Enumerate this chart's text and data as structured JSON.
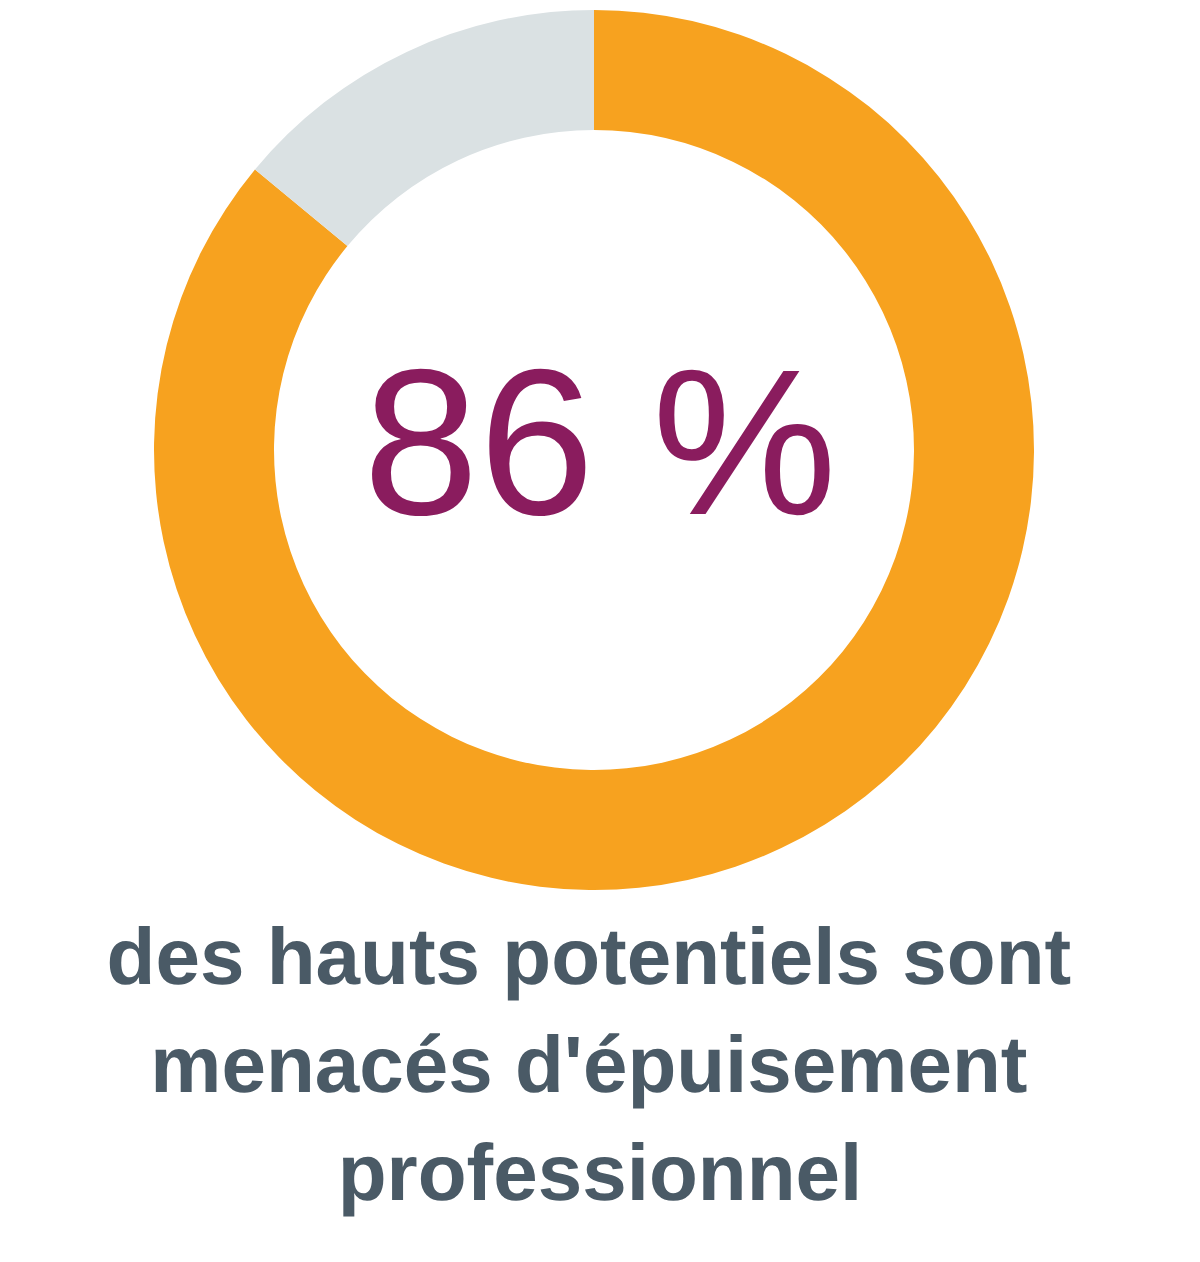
{
  "chart_data": {
    "type": "donut",
    "title": "des hauts potentiels sont menacés d'épuisement professionnel",
    "annotations": [
      "86 %"
    ],
    "categories": [
      null,
      null
    ],
    "values": [
      86,
      14
    ],
    "colors": [
      "#f7a21f",
      "#dae1e3"
    ]
  }
}
